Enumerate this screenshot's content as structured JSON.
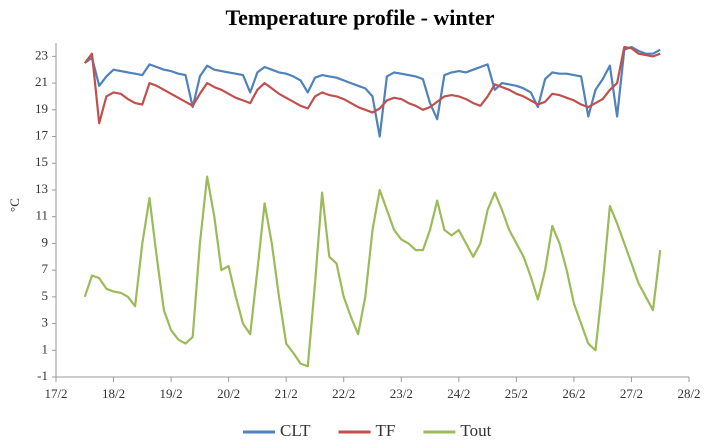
{
  "chart_data": {
    "type": "line",
    "title": "Temperature profile - winter",
    "y_label": "°C",
    "legend": "bottom",
    "xlim": [
      17,
      28
    ],
    "xticks": [
      {
        "value": 17,
        "label": "17/2"
      },
      {
        "value": 18,
        "label": "18/2"
      },
      {
        "value": 19,
        "label": "19/2"
      },
      {
        "value": 20,
        "label": "20/2"
      },
      {
        "value": 21,
        "label": "21/2"
      },
      {
        "value": 22,
        "label": "22/2"
      },
      {
        "value": 23,
        "label": "23/2"
      },
      {
        "value": 24,
        "label": "24/2"
      },
      {
        "value": 25,
        "label": "25/2"
      },
      {
        "value": 26,
        "label": "26/2"
      },
      {
        "value": 27,
        "label": "27/2"
      },
      {
        "value": 28,
        "label": "28/2"
      }
    ],
    "ylim": [
      -1,
      24
    ],
    "yticks": [
      -1,
      1,
      3,
      5,
      7,
      9,
      11,
      13,
      15,
      17,
      19,
      21,
      23
    ],
    "x": [
      17.5,
      17.625,
      17.75,
      17.875,
      18,
      18.125,
      18.25,
      18.375,
      18.5,
      18.625,
      18.75,
      18.875,
      19,
      19.125,
      19.25,
      19.375,
      19.5,
      19.625,
      19.75,
      19.875,
      20,
      20.125,
      20.25,
      20.375,
      20.5,
      20.625,
      20.75,
      20.875,
      21,
      21.125,
      21.25,
      21.375,
      21.5,
      21.625,
      21.75,
      21.875,
      22,
      22.125,
      22.25,
      22.375,
      22.5,
      22.625,
      22.75,
      22.875,
      23,
      23.125,
      23.25,
      23.375,
      23.5,
      23.625,
      23.75,
      23.875,
      24,
      24.125,
      24.25,
      24.375,
      24.5,
      24.625,
      24.75,
      24.875,
      25,
      25.125,
      25.25,
      25.375,
      25.5,
      25.625,
      25.75,
      25.875,
      26,
      26.125,
      26.25,
      26.375,
      26.5,
      26.625,
      26.75,
      26.875,
      27,
      27.125,
      27.25,
      27.375,
      27.5
    ],
    "series": [
      {
        "name": "CLT",
        "color": "#4f81bd",
        "values": [
          22.5,
          22.9,
          20.8,
          21.5,
          22,
          21.9,
          21.8,
          21.7,
          21.6,
          22.4,
          22.2,
          22,
          21.9,
          21.7,
          21.6,
          19.2,
          21.5,
          22.3,
          22,
          21.9,
          21.8,
          21.7,
          21.6,
          20.3,
          21.8,
          22.2,
          22,
          21.8,
          21.7,
          21.5,
          21.2,
          20.3,
          21.4,
          21.6,
          21.5,
          21.4,
          21.2,
          21,
          20.8,
          20.6,
          20,
          17,
          21.5,
          21.8,
          21.7,
          21.6,
          21.5,
          21.3,
          19.5,
          18.3,
          21.6,
          21.8,
          21.9,
          21.8,
          22,
          22.2,
          22.4,
          20.5,
          21,
          20.9,
          20.8,
          20.6,
          20.3,
          19.2,
          21.3,
          21.8,
          21.7,
          21.7,
          21.6,
          21.5,
          18.5,
          20.5,
          21.3,
          22.3,
          18.5,
          23.5,
          23.7,
          23.4,
          23.2,
          23.2,
          23.5
        ]
      },
      {
        "name": "TF",
        "color": "#c0504d",
        "values": [
          22.5,
          23.2,
          18,
          20,
          20.3,
          20.2,
          19.8,
          19.5,
          19.4,
          21,
          20.8,
          20.5,
          20.2,
          19.9,
          19.6,
          19.3,
          20.2,
          21,
          20.7,
          20.5,
          20.2,
          19.9,
          19.7,
          19.5,
          20.5,
          21,
          20.6,
          20.2,
          19.9,
          19.6,
          19.3,
          19.1,
          20,
          20.3,
          20.1,
          20,
          19.8,
          19.5,
          19.2,
          19,
          18.8,
          19.1,
          19.7,
          19.9,
          19.8,
          19.5,
          19.3,
          19,
          19.2,
          19.6,
          20,
          20.1,
          20,
          19.8,
          19.5,
          19.3,
          20,
          20.9,
          20.7,
          20.5,
          20.2,
          20,
          19.7,
          19.4,
          19.6,
          20.2,
          20.1,
          19.9,
          19.7,
          19.4,
          19.2,
          19.5,
          19.8,
          20.5,
          21,
          23.7,
          23.6,
          23.2,
          23.1,
          23,
          23.2
        ]
      },
      {
        "name": "Tout",
        "color": "#9bbb59",
        "values": [
          5,
          6.6,
          6.4,
          5.6,
          5.4,
          5.3,
          5,
          4.3,
          9,
          12.4,
          8,
          4,
          2.5,
          1.8,
          1.5,
          2,
          9,
          14,
          11,
          7,
          7.3,
          5,
          3,
          2.2,
          7,
          12,
          9,
          5,
          1.5,
          0.8,
          0,
          -0.2,
          6,
          12.8,
          8,
          7.5,
          5,
          3.5,
          2.2,
          5,
          10,
          13,
          11.5,
          10,
          9.3,
          9,
          8.5,
          8.5,
          10,
          12.2,
          10,
          9.6,
          10,
          9,
          8,
          9,
          11.5,
          12.8,
          11.5,
          10,
          9,
          8,
          6.5,
          4.8,
          7,
          10.3,
          9,
          7,
          4.5,
          3,
          1.5,
          1,
          6,
          11.8,
          10.5,
          9,
          7.5,
          6,
          5,
          4,
          8.5
        ]
      }
    ]
  }
}
